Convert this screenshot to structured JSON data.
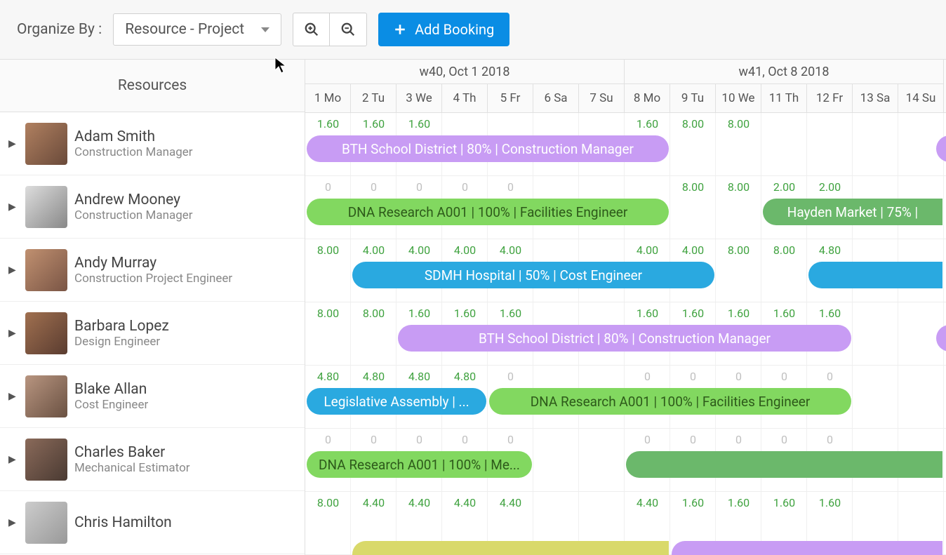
{
  "toolbar": {
    "organize_label": "Organize By :",
    "organize_value": "Resource - Project",
    "add_booking_label": "Add Booking"
  },
  "colors": {
    "purple": "#c89cf4",
    "green": "#82d860",
    "darkgreen": "#6bb86b",
    "blue": "#2aa9e0",
    "yellow": "#d9d96a",
    "hour_green": "#3fa23f",
    "hour_gray": "#bfbfbf"
  },
  "header": {
    "resources_label": "Resources",
    "weeks": [
      {
        "label": "w40, Oct 1 2018",
        "span": 7
      },
      {
        "label": "w41, Oct 8 2018",
        "span": 7
      }
    ],
    "days": [
      "1 Mo",
      "2 Tu",
      "3 We",
      "4 Th",
      "5 Fr",
      "6 Sa",
      "7 Su",
      "8 Mo",
      "9 Tu",
      "10 We",
      "11 Th",
      "12 Fr",
      "13 Sa",
      "14 Su"
    ]
  },
  "resources": [
    {
      "name": "Adam Smith",
      "role": "Construction Manager",
      "avatar_css": "linear-gradient(135deg,#b08060,#6a4a3a)",
      "hours": [
        {
          "v": "1.60",
          "c": "g"
        },
        {
          "v": "1.60",
          "c": "g"
        },
        {
          "v": "1.60",
          "c": "g"
        },
        {
          "v": "",
          "c": ""
        },
        {
          "v": "",
          "c": ""
        },
        {
          "v": "",
          "c": ""
        },
        {
          "v": "",
          "c": ""
        },
        {
          "v": "1.60",
          "c": "g"
        },
        {
          "v": "8.00",
          "c": "g"
        },
        {
          "v": "8.00",
          "c": "g"
        },
        {
          "v": "",
          "c": ""
        },
        {
          "v": "",
          "c": ""
        },
        {
          "v": "",
          "c": ""
        },
        {
          "v": "",
          "c": ""
        }
      ],
      "bookings": [
        {
          "label": "BTH School District | 80% | Construction Manager",
          "start": 0,
          "end": 8,
          "color": "purple",
          "text": "#fff"
        },
        {
          "label": "",
          "start": 13.8,
          "end": 14,
          "color": "purple",
          "text": "#fff",
          "flat_right": true
        }
      ]
    },
    {
      "name": "Andrew Mooney",
      "role": "Construction Manager",
      "avatar_css": "linear-gradient(135deg,#ddd,#888)",
      "hours": [
        {
          "v": "0",
          "c": "z"
        },
        {
          "v": "0",
          "c": "z"
        },
        {
          "v": "0",
          "c": "z"
        },
        {
          "v": "0",
          "c": "z"
        },
        {
          "v": "0",
          "c": "z"
        },
        {
          "v": "",
          "c": ""
        },
        {
          "v": "",
          "c": ""
        },
        {
          "v": "",
          "c": ""
        },
        {
          "v": "8.00",
          "c": "g"
        },
        {
          "v": "8.00",
          "c": "g"
        },
        {
          "v": "2.00",
          "c": "g"
        },
        {
          "v": "2.00",
          "c": "g"
        },
        {
          "v": "",
          "c": ""
        },
        {
          "v": "",
          "c": ""
        }
      ],
      "bookings": [
        {
          "label": "DNA Research A001 | 100% | Facilities Engineer",
          "start": 0,
          "end": 8,
          "color": "green",
          "text": "#2d5a1a"
        },
        {
          "label": "Hayden Market | 75% |",
          "start": 10,
          "end": 14,
          "color": "darkgreen",
          "text": "#fff",
          "flat_right": true
        }
      ]
    },
    {
      "name": "Andy Murray",
      "role": "Construction Project Engineer",
      "avatar_css": "linear-gradient(135deg,#c09070,#7a5545)",
      "hours": [
        {
          "v": "8.00",
          "c": "g"
        },
        {
          "v": "4.00",
          "c": "g"
        },
        {
          "v": "4.00",
          "c": "g"
        },
        {
          "v": "4.00",
          "c": "g"
        },
        {
          "v": "4.00",
          "c": "g"
        },
        {
          "v": "",
          "c": ""
        },
        {
          "v": "",
          "c": ""
        },
        {
          "v": "4.00",
          "c": "g"
        },
        {
          "v": "4.00",
          "c": "g"
        },
        {
          "v": "8.00",
          "c": "g"
        },
        {
          "v": "8.00",
          "c": "g"
        },
        {
          "v": "4.80",
          "c": "g"
        },
        {
          "v": "",
          "c": ""
        },
        {
          "v": "",
          "c": ""
        }
      ],
      "bookings": [
        {
          "label": "SDMH Hospital | 50% | Cost Engineer",
          "start": 1,
          "end": 9,
          "color": "blue",
          "text": "#fff"
        },
        {
          "label": "",
          "start": 11,
          "end": 14,
          "color": "blue",
          "text": "#fff",
          "flat_right": true
        }
      ]
    },
    {
      "name": "Barbara Lopez",
      "role": "Design Engineer",
      "avatar_css": "linear-gradient(135deg,#a07050,#5a3c30)",
      "hours": [
        {
          "v": "8.00",
          "c": "g"
        },
        {
          "v": "8.00",
          "c": "g"
        },
        {
          "v": "1.60",
          "c": "g"
        },
        {
          "v": "1.60",
          "c": "g"
        },
        {
          "v": "1.60",
          "c": "g"
        },
        {
          "v": "",
          "c": ""
        },
        {
          "v": "",
          "c": ""
        },
        {
          "v": "1.60",
          "c": "g"
        },
        {
          "v": "1.60",
          "c": "g"
        },
        {
          "v": "1.60",
          "c": "g"
        },
        {
          "v": "1.60",
          "c": "g"
        },
        {
          "v": "1.60",
          "c": "g"
        },
        {
          "v": "",
          "c": ""
        },
        {
          "v": "",
          "c": ""
        }
      ],
      "bookings": [
        {
          "label": "BTH School District | 80% | Construction Manager",
          "start": 2,
          "end": 12,
          "color": "purple",
          "text": "#fff"
        },
        {
          "label": "",
          "start": 13.8,
          "end": 14,
          "color": "purple",
          "text": "#fff",
          "flat_right": true
        }
      ]
    },
    {
      "name": "Blake Allan",
      "role": "Cost Engineer",
      "avatar_css": "linear-gradient(135deg,#b89580,#6a5142)",
      "hours": [
        {
          "v": "4.80",
          "c": "g"
        },
        {
          "v": "4.80",
          "c": "g"
        },
        {
          "v": "4.80",
          "c": "g"
        },
        {
          "v": "4.80",
          "c": "g"
        },
        {
          "v": "0",
          "c": "z"
        },
        {
          "v": "",
          "c": ""
        },
        {
          "v": "",
          "c": ""
        },
        {
          "v": "0",
          "c": "z"
        },
        {
          "v": "0",
          "c": "z"
        },
        {
          "v": "0",
          "c": "z"
        },
        {
          "v": "0",
          "c": "z"
        },
        {
          "v": "0",
          "c": "z"
        },
        {
          "v": "",
          "c": ""
        },
        {
          "v": "",
          "c": ""
        }
      ],
      "bookings": [
        {
          "label": "Legislative Assembly | ...",
          "start": 0,
          "end": 4,
          "color": "blue",
          "text": "#fff"
        },
        {
          "label": "DNA Research A001 | 100% | Facilities Engineer",
          "start": 4,
          "end": 12,
          "color": "green",
          "text": "#2d5a1a"
        }
      ]
    },
    {
      "name": "Charles Baker",
      "role": "Mechanical Estimator",
      "avatar_css": "linear-gradient(135deg,#8a6a5a,#4a3a32)",
      "hours": [
        {
          "v": "0",
          "c": "z"
        },
        {
          "v": "0",
          "c": "z"
        },
        {
          "v": "0",
          "c": "z"
        },
        {
          "v": "0",
          "c": "z"
        },
        {
          "v": "0",
          "c": "z"
        },
        {
          "v": "",
          "c": ""
        },
        {
          "v": "",
          "c": ""
        },
        {
          "v": "0",
          "c": "z"
        },
        {
          "v": "0",
          "c": "z"
        },
        {
          "v": "0",
          "c": "z"
        },
        {
          "v": "0",
          "c": "z"
        },
        {
          "v": "0",
          "c": "z"
        },
        {
          "v": "",
          "c": ""
        },
        {
          "v": "",
          "c": ""
        }
      ],
      "bookings": [
        {
          "label": "DNA Research A001 | 100% | Me...",
          "start": 0,
          "end": 5,
          "color": "green",
          "text": "#2d5a1a"
        },
        {
          "label": "",
          "start": 7,
          "end": 14,
          "color": "darkgreen",
          "text": "#fff",
          "flat_right": true
        }
      ]
    },
    {
      "name": "Chris Hamilton",
      "role": "",
      "avatar_css": "linear-gradient(135deg,#ccc,#999)",
      "hours": [
        {
          "v": "8.00",
          "c": "g"
        },
        {
          "v": "4.40",
          "c": "g"
        },
        {
          "v": "4.40",
          "c": "g"
        },
        {
          "v": "4.40",
          "c": "g"
        },
        {
          "v": "4.40",
          "c": "g"
        },
        {
          "v": "",
          "c": ""
        },
        {
          "v": "",
          "c": ""
        },
        {
          "v": "4.40",
          "c": "g"
        },
        {
          "v": "1.60",
          "c": "g"
        },
        {
          "v": "1.60",
          "c": "g"
        },
        {
          "v": "1.60",
          "c": "g"
        },
        {
          "v": "1.60",
          "c": "g"
        },
        {
          "v": "",
          "c": ""
        },
        {
          "v": "",
          "c": ""
        }
      ],
      "bookings": [
        {
          "label": "",
          "start": 1,
          "end": 8,
          "color": "yellow",
          "text": "#5a5a1a",
          "flat_right": true,
          "partial_top": true
        },
        {
          "label": "",
          "start": 8,
          "end": 14,
          "color": "purple",
          "text": "#fff",
          "flat_right": true,
          "partial_top": true
        }
      ]
    }
  ]
}
